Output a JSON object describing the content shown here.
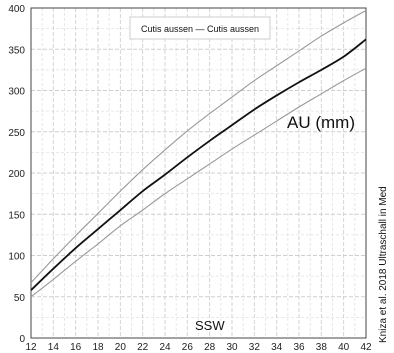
{
  "chart_data": {
    "type": "line",
    "title_box": "Cutis aussen — Cutis aussen",
    "xlabel": "SSW",
    "ylabel_annotation": "AU (mm)",
    "credit": "Kniza et al. 2018 Ultraschall in Med",
    "xlim": [
      12,
      42
    ],
    "ylim": [
      0,
      400
    ],
    "x_ticks": [
      12,
      14,
      16,
      18,
      20,
      22,
      24,
      26,
      28,
      30,
      32,
      34,
      36,
      38,
      40,
      42
    ],
    "y_ticks": [
      0,
      50,
      100,
      150,
      200,
      250,
      300,
      350,
      400
    ],
    "grid": true,
    "minor_grid": true,
    "x": [
      12,
      14,
      16,
      18,
      20,
      22,
      24,
      26,
      28,
      30,
      32,
      34,
      36,
      38,
      40,
      42
    ],
    "series": [
      {
        "role": "upper",
        "color": "#999999",
        "values": [
          67,
          96,
          124,
          151,
          178,
          204,
          228,
          251,
          272,
          292,
          312,
          330,
          348,
          366,
          382,
          397
        ]
      },
      {
        "role": "median",
        "color": "#111111",
        "values": [
          58,
          84,
          109,
          132,
          155,
          178,
          198,
          219,
          239,
          258,
          277,
          294,
          310,
          325,
          341,
          362
        ]
      },
      {
        "role": "lower",
        "color": "#999999",
        "values": [
          50,
          71,
          93,
          114,
          136,
          155,
          175,
          193,
          211,
          229,
          246,
          263,
          280,
          296,
          312,
          327
        ]
      }
    ]
  }
}
